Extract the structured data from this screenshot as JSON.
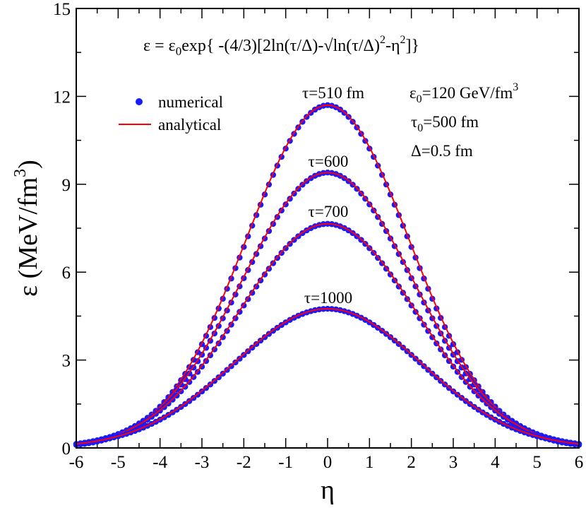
{
  "chart_data": {
    "type": "line",
    "title": "",
    "xlabel": "η",
    "ylabel": "ε (MeV/fm",
    "ylabel_sup": "3",
    "ylabel_tail": ")",
    "xlim": [
      -6,
      6
    ],
    "ylim": [
      0,
      15
    ],
    "x_ticks": [
      -6,
      -5,
      -4,
      -3,
      -2,
      -1,
      0,
      1,
      2,
      3,
      4,
      5,
      6
    ],
    "y_ticks": [
      0,
      3,
      6,
      9,
      12,
      15
    ],
    "grid": false,
    "formula": {
      "lhs": "ε = ε",
      "sub0": "0",
      "mid": "exp{ -(4/3)[2ln(τ/Δ)-√ln(τ/Δ)",
      "sup2": "2",
      "tail": "-η",
      "sup3": "2",
      "end": "]}"
    },
    "params": [
      {
        "base": "ε",
        "sub": "0",
        "rest": "=120 GeV/fm",
        "sup": "3"
      },
      {
        "base": "τ",
        "sub": "0",
        "rest": "=500 fm",
        "sup": ""
      },
      {
        "base": "Δ=0.5 fm",
        "sub": "",
        "rest": "",
        "sup": ""
      }
    ],
    "legend": {
      "placement": "top-left",
      "entries": [
        {
          "label": "numerical",
          "style": "dots",
          "color": "#1a1aff"
        },
        {
          "label": "analytical",
          "style": "line",
          "color": "#ff0000"
        }
      ]
    },
    "series": [
      {
        "name": "τ=510 fm",
        "tau": 510,
        "peak": 11.7,
        "sigma": 1.95,
        "plateau": 0.0,
        "num_offset": 0.0
      },
      {
        "name": "τ=600",
        "tau": 600,
        "peak": 9.4,
        "sigma": 2.05,
        "plateau": 0.0,
        "num_offset": 0.0
      },
      {
        "name": "τ=700",
        "tau": 700,
        "peak": 7.65,
        "sigma": 2.12,
        "plateau": 0.0,
        "num_offset": 0.0
      },
      {
        "name": "τ=1000",
        "tau": 1000,
        "peak": 4.75,
        "sigma": 2.25,
        "plateau": 0.0,
        "num_offset": 0.0
      }
    ],
    "numerical_color": "#1a1aff",
    "analytical_color": "#ff0000"
  }
}
